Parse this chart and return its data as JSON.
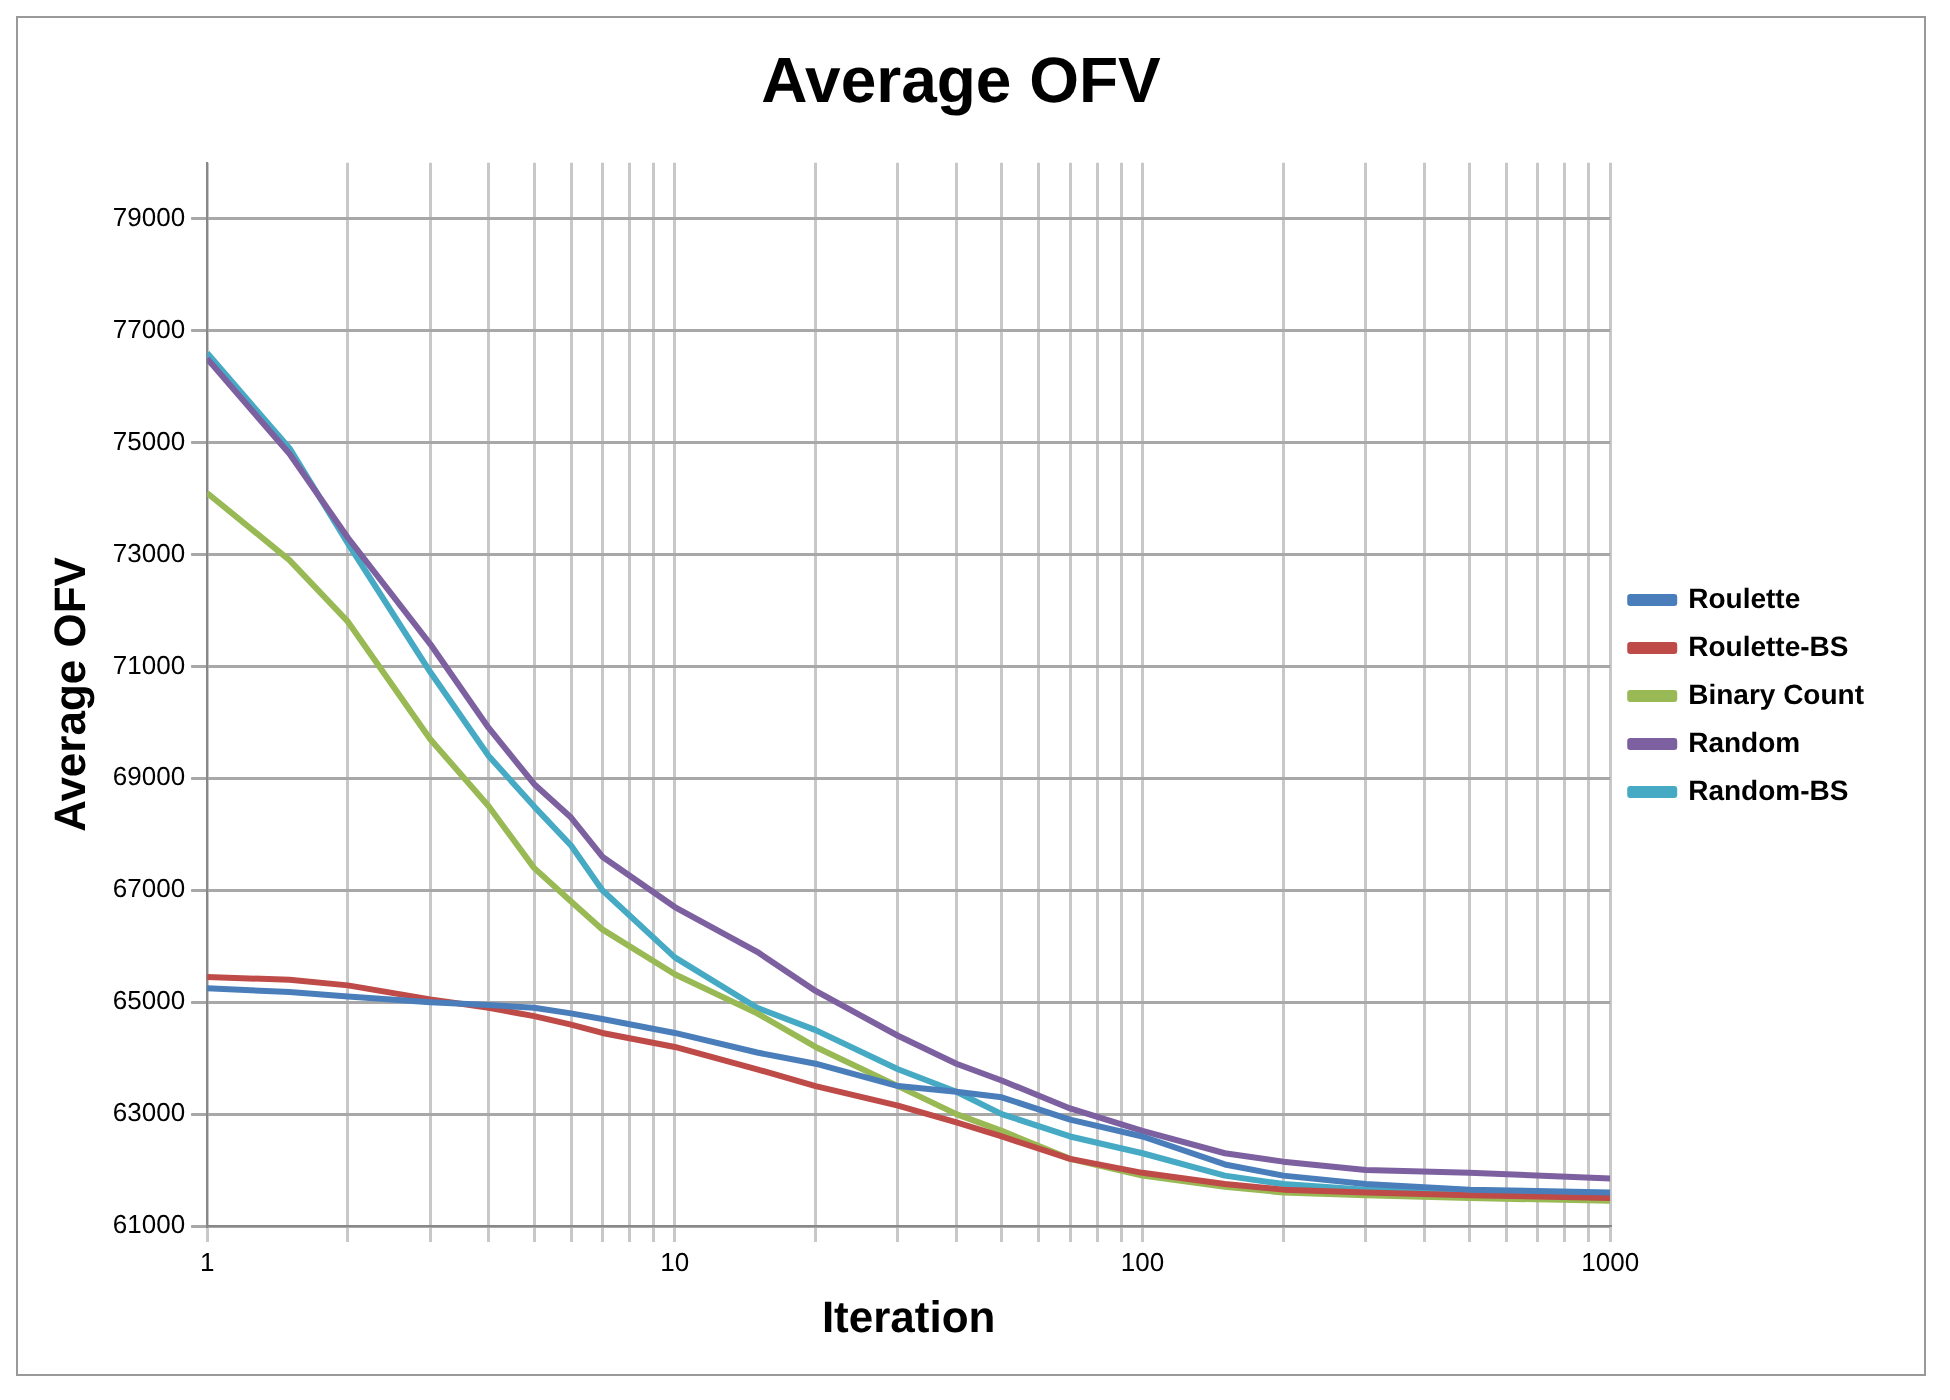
{
  "chart_data": {
    "type": "line",
    "title": "Average OFV",
    "xlabel": "Iteration",
    "ylabel": "Average OFV",
    "log": "x",
    "grid": true,
    "legend": "right",
    "marker": "none",
    "line_style": "solid",
    "x": [
      1,
      1.5,
      2,
      3,
      4,
      5,
      6,
      7,
      10,
      15,
      20,
      30,
      40,
      50,
      70,
      100,
      150,
      200,
      300,
      500,
      1000
    ],
    "xlim": [
      1,
      1000
    ],
    "xticks": [
      1,
      {
        "value": 2,
        "label": null
      },
      {
        "value": 3,
        "label": null
      },
      {
        "value": 4,
        "label": null
      },
      {
        "value": 5,
        "label": null
      },
      {
        "value": 6,
        "label": null
      },
      {
        "value": 7,
        "label": null
      },
      {
        "value": 8,
        "label": null
      },
      {
        "value": 9,
        "label": null
      },
      10,
      {
        "value": 20,
        "label": null
      },
      {
        "value": 30,
        "label": null
      },
      {
        "value": 40,
        "label": null
      },
      {
        "value": 50,
        "label": null
      },
      {
        "value": 60,
        "label": null
      },
      {
        "value": 70,
        "label": null
      },
      {
        "value": 80,
        "label": null
      },
      {
        "value": 90,
        "label": null
      },
      100,
      {
        "value": 200,
        "label": null
      },
      {
        "value": 300,
        "label": null
      },
      {
        "value": 400,
        "label": null
      },
      {
        "value": 500,
        "label": null
      },
      {
        "value": 600,
        "label": null
      },
      {
        "value": 700,
        "label": null
      },
      {
        "value": 800,
        "label": null
      },
      {
        "value": 900,
        "label": null
      },
      1000
    ],
    "ylim": [
      61000,
      80000
    ],
    "yticks": [
      61000,
      63000,
      65000,
      67000,
      69000,
      71000,
      73000,
      75000,
      77000,
      79000
    ],
    "series": [
      {
        "name": "Roulette",
        "color": "#4a7ebb",
        "values": [
          65250,
          65180,
          65100,
          65000,
          64950,
          64900,
          64800,
          64700,
          64450,
          64100,
          63900,
          63500,
          63400,
          63300,
          62900,
          62600,
          62100,
          61900,
          61750,
          61650,
          61600
        ]
      },
      {
        "name": "Roulette-BS",
        "color": "#be4b48",
        "values": [
          65450,
          65400,
          65300,
          65050,
          64900,
          64750,
          64600,
          64450,
          64200,
          63800,
          63500,
          63150,
          62850,
          62600,
          62200,
          61950,
          61750,
          61650,
          61600,
          61550,
          61500
        ]
      },
      {
        "name": "Binary Count",
        "color": "#98b954",
        "values": [
          74100,
          72900,
          71800,
          69700,
          68500,
          67400,
          66800,
          66300,
          65500,
          64800,
          64200,
          63500,
          63000,
          62700,
          62200,
          61900,
          61700,
          61600,
          61550,
          61500,
          61450
        ]
      },
      {
        "name": "Random",
        "color": "#7d60a0",
        "values": [
          76500,
          74800,
          73300,
          71400,
          69900,
          68900,
          68300,
          67600,
          66700,
          65900,
          65200,
          64400,
          63900,
          63600,
          63100,
          62700,
          62300,
          62150,
          62000,
          61950,
          61850
        ]
      },
      {
        "name": "Random-BS",
        "color": "#46aac5",
        "values": [
          76600,
          74900,
          73200,
          70900,
          69400,
          68500,
          67800,
          67000,
          65800,
          64900,
          64500,
          63800,
          63400,
          63000,
          62600,
          62300,
          61900,
          61750,
          61650,
          61600,
          61550
        ]
      }
    ]
  }
}
